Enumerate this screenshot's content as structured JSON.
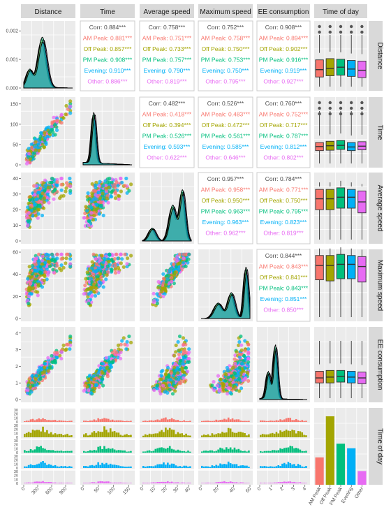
{
  "variables": [
    "Distance",
    "Time",
    "Average speed",
    "Maximum speed",
    "EE consumption",
    "Time of day"
  ],
  "groups": [
    {
      "name": "AM Peak",
      "color": "#F8766D"
    },
    {
      "name": "Off Peak",
      "color": "#A3A500"
    },
    {
      "name": "PM Peak",
      "color": "#00BF7D"
    },
    {
      "name": "Evening",
      "color": "#00B0F6"
    },
    {
      "name": "Other",
      "color": "#E76BF3"
    }
  ],
  "chart_data": {
    "type": "scatter",
    "layout": "pairs-matrix",
    "axes": {
      "Distance": {
        "ticks": [
          "0",
          "300",
          "600",
          "900"
        ],
        "range": [
          0,
          1050
        ],
        "density_ticks": [
          "0.000",
          "0.001",
          "0.002"
        ]
      },
      "Time": {
        "ticks": [
          "0",
          "50",
          "100",
          "150"
        ],
        "range": [
          0,
          160
        ]
      },
      "Average speed": {
        "ticks": [
          "0",
          "10",
          "20",
          "30",
          "40"
        ],
        "range": [
          0,
          42
        ]
      },
      "Maximum speed": {
        "ticks": [
          "0",
          "20",
          "40",
          "60"
        ],
        "range": [
          0,
          60
        ]
      },
      "EE consumption": {
        "ticks": [
          "0",
          "1",
          "2",
          "3",
          "4"
        ],
        "range": [
          0,
          4.2
        ]
      },
      "Time of day": {
        "count_ticks": [
          "0",
          "10",
          "20",
          "30"
        ]
      }
    },
    "correlations": [
      {
        "pair": [
          "Time",
          "Distance"
        ],
        "rows": [
          {
            "label": "Corr",
            "value": "0.884***"
          },
          {
            "label": "AM Peak",
            "value": "0.881***"
          },
          {
            "label": "Off Peak",
            "value": "0.857***"
          },
          {
            "label": "PM Peak",
            "value": "0.908***"
          },
          {
            "label": "Evening",
            "value": "0.910***"
          },
          {
            "label": "Other",
            "value": "0.886***"
          }
        ]
      },
      {
        "pair": [
          "Average speed",
          "Distance"
        ],
        "rows": [
          {
            "label": "Corr",
            "value": "0.758***"
          },
          {
            "label": "AM Peak",
            "value": "0.751***"
          },
          {
            "label": "Off Peak",
            "value": "0.733***"
          },
          {
            "label": "PM Peak",
            "value": "0.757***"
          },
          {
            "label": "Evening",
            "value": "0.790***"
          },
          {
            "label": "Other",
            "value": "0.819***"
          }
        ]
      },
      {
        "pair": [
          "Maximum speed",
          "Distance"
        ],
        "rows": [
          {
            "label": "Corr",
            "value": "0.752***"
          },
          {
            "label": "AM Peak",
            "value": "0.758***"
          },
          {
            "label": "Off Peak",
            "value": "0.750***"
          },
          {
            "label": "PM Peak",
            "value": "0.753***"
          },
          {
            "label": "Evening",
            "value": "0.750***"
          },
          {
            "label": "Other",
            "value": "0.795***"
          }
        ]
      },
      {
        "pair": [
          "EE consumption",
          "Distance"
        ],
        "rows": [
          {
            "label": "Corr",
            "value": "0.908***"
          },
          {
            "label": "AM Peak",
            "value": "0.894***"
          },
          {
            "label": "Off Peak",
            "value": "0.902***"
          },
          {
            "label": "PM Peak",
            "value": "0.916***"
          },
          {
            "label": "Evening",
            "value": "0.919***"
          },
          {
            "label": "Other",
            "value": "0.927***"
          }
        ]
      },
      {
        "pair": [
          "Average speed",
          "Time"
        ],
        "rows": [
          {
            "label": "Corr",
            "value": "0.482***"
          },
          {
            "label": "AM Peak",
            "value": "0.418***"
          },
          {
            "label": "Off Peak",
            "value": "0.394***"
          },
          {
            "label": "PM Peak",
            "value": "0.526***"
          },
          {
            "label": "Evening",
            "value": "0.593***"
          },
          {
            "label": "Other",
            "value": "0.622***"
          }
        ]
      },
      {
        "pair": [
          "Maximum speed",
          "Time"
        ],
        "rows": [
          {
            "label": "Corr",
            "value": "0.526***"
          },
          {
            "label": "AM Peak",
            "value": "0.483***"
          },
          {
            "label": "Off Peak",
            "value": "0.472***"
          },
          {
            "label": "PM Peak",
            "value": "0.561***"
          },
          {
            "label": "Evening",
            "value": "0.585***"
          },
          {
            "label": "Other",
            "value": "0.646***"
          }
        ]
      },
      {
        "pair": [
          "EE consumption",
          "Time"
        ],
        "rows": [
          {
            "label": "Corr",
            "value": "0.760***"
          },
          {
            "label": "AM Peak",
            "value": "0.752***"
          },
          {
            "label": "Off Peak",
            "value": "0.717***"
          },
          {
            "label": "PM Peak",
            "value": "0.787***"
          },
          {
            "label": "Evening",
            "value": "0.812***"
          },
          {
            "label": "Other",
            "value": "0.802***"
          }
        ]
      },
      {
        "pair": [
          "Maximum speed",
          "Average speed"
        ],
        "rows": [
          {
            "label": "Corr",
            "value": "0.957***"
          },
          {
            "label": "AM Peak",
            "value": "0.958***"
          },
          {
            "label": "Off Peak",
            "value": "0.950***"
          },
          {
            "label": "PM Peak",
            "value": "0.963***"
          },
          {
            "label": "Evening",
            "value": "0.963***"
          },
          {
            "label": "Other",
            "value": "0.962***"
          }
        ]
      },
      {
        "pair": [
          "EE consumption",
          "Average speed"
        ],
        "rows": [
          {
            "label": "Corr",
            "value": "0.784***"
          },
          {
            "label": "AM Peak",
            "value": "0.771***"
          },
          {
            "label": "Off Peak",
            "value": "0.750***"
          },
          {
            "label": "PM Peak",
            "value": "0.795***"
          },
          {
            "label": "Evening",
            "value": "0.823***"
          },
          {
            "label": "Other",
            "value": "0.819***"
          }
        ]
      },
      {
        "pair": [
          "EE consumption",
          "Maximum speed"
        ],
        "rows": [
          {
            "label": "Corr",
            "value": "0.844***"
          },
          {
            "label": "AM Peak",
            "value": "0.843***"
          },
          {
            "label": "Off Peak",
            "value": "0.841***"
          },
          {
            "label": "PM Peak",
            "value": "0.843***"
          },
          {
            "label": "Evening",
            "value": "0.851***"
          },
          {
            "label": "Other",
            "value": "0.850***"
          }
        ]
      }
    ],
    "time_of_day_counts": {
      "categories": [
        "AM Peak",
        "Off Peak",
        "PM Peak",
        "Evening",
        "Other"
      ],
      "values": [
        6,
        15,
        9,
        8,
        3
      ]
    },
    "boxplots": {
      "Distance": [
        {
          "group": "AM Peak",
          "q1": 180,
          "median": 300,
          "q3": 460
        },
        {
          "group": "Off Peak",
          "q1": 200,
          "median": 320,
          "q3": 480
        },
        {
          "group": "PM Peak",
          "q1": 210,
          "median": 340,
          "q3": 470
        },
        {
          "group": "Evening",
          "q1": 190,
          "median": 310,
          "q3": 450
        },
        {
          "group": "Other",
          "q1": 170,
          "median": 290,
          "q3": 440
        }
      ],
      "Time": [
        {
          "group": "AM Peak",
          "q1": 35,
          "median": 45,
          "q3": 55
        },
        {
          "group": "Off Peak",
          "q1": 36,
          "median": 47,
          "q3": 58
        },
        {
          "group": "PM Peak",
          "q1": 38,
          "median": 48,
          "q3": 60
        },
        {
          "group": "Evening",
          "q1": 35,
          "median": 44,
          "q3": 55
        },
        {
          "group": "Other",
          "q1": 37,
          "median": 46,
          "q3": 57
        }
      ],
      "Average speed": [
        {
          "group": "AM Peak",
          "q1": 20,
          "median": 27,
          "q3": 33
        },
        {
          "group": "Off Peak",
          "q1": 20,
          "median": 27,
          "q3": 33
        },
        {
          "group": "PM Peak",
          "q1": 21,
          "median": 28,
          "q3": 34
        },
        {
          "group": "Evening",
          "q1": 21,
          "median": 28,
          "q3": 33
        },
        {
          "group": "Other",
          "q1": 18,
          "median": 25,
          "q3": 32
        }
      ],
      "Maximum speed": [
        {
          "group": "AM Peak",
          "q1": 35,
          "median": 48,
          "q3": 57
        },
        {
          "group": "Off Peak",
          "q1": 34,
          "median": 48,
          "q3": 57
        },
        {
          "group": "PM Peak",
          "q1": 36,
          "median": 49,
          "q3": 58
        },
        {
          "group": "Evening",
          "q1": 36,
          "median": 49,
          "q3": 57
        },
        {
          "group": "Other",
          "q1": 33,
          "median": 47,
          "q3": 56
        }
      ],
      "EE consumption": [
        {
          "group": "AM Peak",
          "q1": 1.0,
          "median": 1.3,
          "q3": 1.7
        },
        {
          "group": "Off Peak",
          "q1": 1.0,
          "median": 1.35,
          "q3": 1.75
        },
        {
          "group": "PM Peak",
          "q1": 1.05,
          "median": 1.4,
          "q3": 1.75
        },
        {
          "group": "Evening",
          "q1": 1.0,
          "median": 1.35,
          "q3": 1.7
        },
        {
          "group": "Other",
          "q1": 0.95,
          "median": 1.3,
          "q3": 1.65
        }
      ]
    }
  }
}
